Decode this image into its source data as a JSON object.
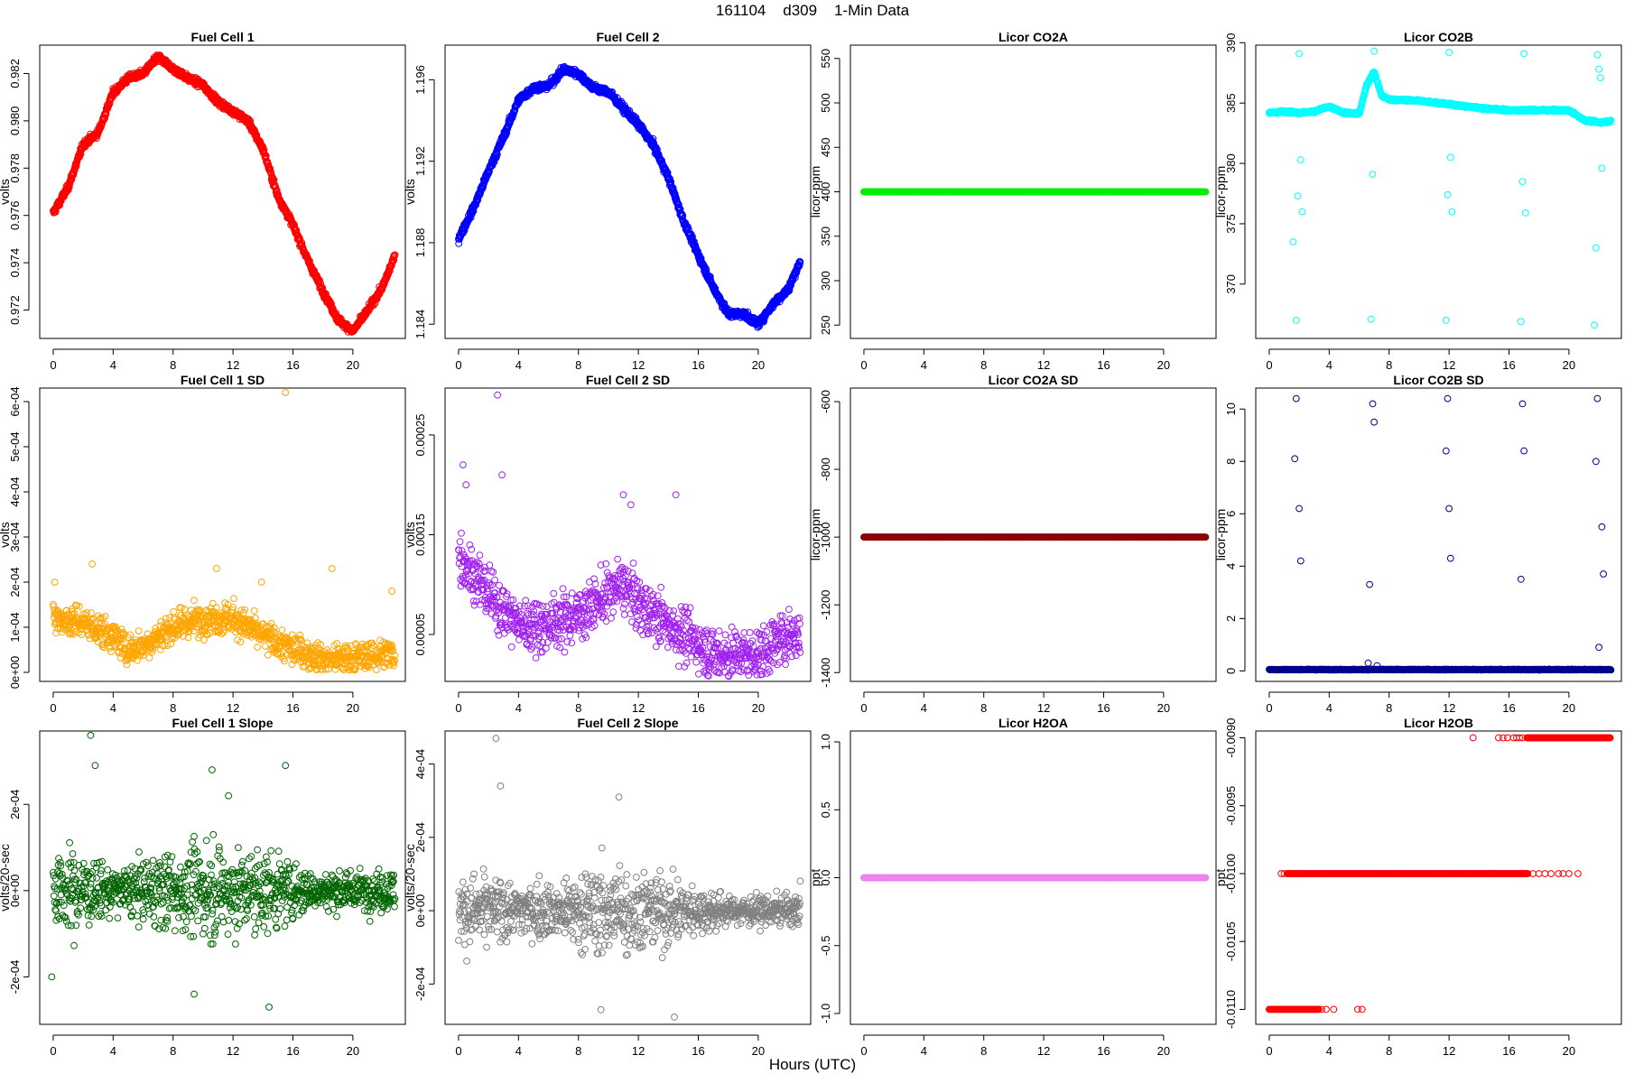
{
  "figure": {
    "title": "161104    d309    1-Min Data",
    "xlabel": "Hours (UTC)"
  },
  "chart_data": [
    {
      "id": "fc1",
      "type": "scatter",
      "title": "Fuel Cell 1",
      "ylabel": "volts",
      "color": "#ff0000",
      "xlim": [
        -0.9,
        23.5
      ],
      "ylim": [
        0.9708,
        0.9832
      ],
      "xticks": [
        0,
        4,
        8,
        12,
        16,
        20
      ],
      "xticklabels": [
        "0",
        "4",
        "8",
        "12",
        "16",
        "20"
      ],
      "yticks": [
        0.972,
        0.974,
        0.976,
        0.978,
        0.98,
        0.982
      ],
      "yticklabels": [
        "0.972",
        "0.974",
        "0.976",
        "0.978",
        "0.980",
        "0.982"
      ],
      "pattern": "curve",
      "noise": 0.00012,
      "x": [
        0,
        1,
        2,
        3,
        4,
        5,
        6,
        7,
        8,
        9,
        10,
        11,
        12,
        13,
        14,
        15,
        16,
        17,
        18,
        19,
        20,
        21,
        22,
        22.8
      ],
      "y": [
        0.9761,
        0.9772,
        0.979,
        0.9795,
        0.9812,
        0.9818,
        0.982,
        0.9827,
        0.9822,
        0.9818,
        0.9815,
        0.9808,
        0.9804,
        0.98,
        0.9788,
        0.9768,
        0.9756,
        0.9741,
        0.9728,
        0.9716,
        0.9711,
        0.972,
        0.973,
        0.9743
      ]
    },
    {
      "id": "fc2",
      "type": "scatter",
      "title": "Fuel Cell 2",
      "ylabel": "volts",
      "color": "#0000ff",
      "xlim": [
        -0.9,
        23.5
      ],
      "ylim": [
        1.1833,
        1.1977
      ],
      "xticks": [
        0,
        4,
        8,
        12,
        16,
        20
      ],
      "xticklabels": [
        "0",
        "4",
        "8",
        "12",
        "16",
        "20"
      ],
      "yticks": [
        1.184,
        1.188,
        1.192,
        1.196
      ],
      "yticklabels": [
        "1.184",
        "1.188",
        "1.192",
        "1.196"
      ],
      "pattern": "curve",
      "noise": 0.00015,
      "x": [
        0,
        1,
        2,
        3,
        4,
        5,
        6,
        7,
        8,
        9,
        10,
        11,
        12,
        13,
        14,
        15,
        16,
        17,
        18,
        19,
        20,
        21,
        22,
        22.8
      ],
      "y": [
        1.1882,
        1.1897,
        1.1915,
        1.1932,
        1.195,
        1.1956,
        1.1957,
        1.1965,
        1.1963,
        1.1956,
        1.1954,
        1.1946,
        1.1938,
        1.1928,
        1.1912,
        1.1891,
        1.1874,
        1.1858,
        1.1845,
        1.1845,
        1.184,
        1.185,
        1.1857,
        1.1871
      ]
    },
    {
      "id": "co2a",
      "type": "scatter",
      "title": "Licor CO2A",
      "ylabel": "licor-ppm",
      "color": "#00ee00",
      "xlim": [
        -0.9,
        23.5
      ],
      "ylim": [
        235,
        565
      ],
      "xticks": [
        0,
        4,
        8,
        12,
        16,
        20
      ],
      "xticklabels": [
        "0",
        "4",
        "8",
        "12",
        "16",
        "20"
      ],
      "yticks": [
        250,
        300,
        350,
        400,
        450,
        500,
        550
      ],
      "yticklabels": [
        "250",
        "300",
        "350",
        "400",
        "450",
        "500",
        "550"
      ],
      "pattern": "flat",
      "x": [
        0,
        22.8
      ],
      "y": [
        400,
        400
      ]
    },
    {
      "id": "co2b",
      "type": "scatter",
      "title": "Licor CO2B",
      "ylabel": "licor-ppm",
      "color": "#00ffff",
      "xlim": [
        -0.9,
        23.5
      ],
      "ylim": [
        365.5,
        389.8
      ],
      "xticks": [
        0,
        4,
        8,
        12,
        16,
        20
      ],
      "xticklabels": [
        "0",
        "4",
        "8",
        "12",
        "16",
        "20"
      ],
      "yticks": [
        370,
        375,
        380,
        385,
        390
      ],
      "yticklabels": [
        "370",
        "375",
        "380",
        "385",
        "390"
      ],
      "pattern": "curve",
      "noise": 0.08,
      "x": [
        0,
        1,
        2,
        3,
        4,
        5,
        6,
        6.5,
        7,
        7.5,
        8,
        10,
        12,
        14,
        16,
        18,
        20,
        21,
        22,
        22.8
      ],
      "y": [
        384.2,
        384.3,
        384.2,
        384.3,
        384.7,
        384.2,
        384.1,
        386.5,
        387.6,
        385.6,
        385.3,
        385.2,
        384.9,
        384.6,
        384.4,
        384.4,
        384.4,
        383.6,
        383.4,
        383.5
      ],
      "outliers": {
        "x": [
          1.6,
          1.8,
          2,
          2.1,
          2.2,
          1.9,
          6.8,
          7.0,
          6.9,
          11.8,
          12,
          12.1,
          12.2,
          11.9,
          16.8,
          17,
          16.9,
          17.1,
          21.7,
          21.9,
          22,
          22.1,
          22.2,
          21.8
        ],
        "y": [
          373.5,
          367,
          389.1,
          380.3,
          376,
          377.3,
          367.1,
          389.3,
          379.1,
          367,
          389.2,
          380.5,
          376,
          377.4,
          366.9,
          389.1,
          378.5,
          375.9,
          366.6,
          389,
          387.8,
          387.1,
          379.6,
          373
        ]
      }
    },
    {
      "id": "fc1sd",
      "type": "scatter",
      "title": "Fuel Cell 1 SD",
      "ylabel": "volts",
      "color": "#ffa500",
      "xlim": [
        -0.9,
        23.5
      ],
      "ylim": [
        -2e-05,
        0.00063
      ],
      "xticks": [
        0,
        4,
        8,
        12,
        16,
        20
      ],
      "xticklabels": [
        "0",
        "4",
        "8",
        "12",
        "16",
        "20"
      ],
      "yticks": [
        0,
        0.0001,
        0.0002,
        0.0003,
        0.0004,
        0.0005,
        0.0006
      ],
      "yticklabels": [
        "0e+00",
        "1e-04",
        "2e-04",
        "3e-04",
        "4e-04",
        "5e-04",
        "6e-04"
      ],
      "pattern": "noise",
      "noise": 3e-05,
      "floor": 5e-06,
      "x": [
        0,
        2,
        4,
        5,
        6,
        8,
        10,
        12,
        14,
        16,
        18,
        20,
        22,
        22.8
      ],
      "y": [
        0.00012,
        0.00011,
        8e-05,
        5e-05,
        6e-05,
        0.0001,
        0.00012,
        0.00012,
        8e-05,
        5e-05,
        3e-05,
        3e-05,
        4e-05,
        4e-05
      ],
      "outliers": {
        "x": [
          15.5,
          2.6,
          10.9,
          18.6,
          22.6,
          0.1,
          13.9
        ],
        "y": [
          0.00062,
          0.00024,
          0.00023,
          0.00023,
          0.00018,
          0.0002,
          0.0002
        ]
      }
    },
    {
      "id": "fc2sd",
      "type": "scatter",
      "title": "Fuel Cell 2 SD",
      "ylabel": "volts",
      "color": "#a020f0",
      "xlim": [
        -0.9,
        23.5
      ],
      "ylim": [
        3e-06,
        0.000297
      ],
      "xticks": [
        0,
        4,
        8,
        12,
        16,
        20
      ],
      "xticklabels": [
        "0",
        "4",
        "8",
        "12",
        "16",
        "20"
      ],
      "yticks": [
        5e-05,
        0.00015,
        0.00025
      ],
      "yticklabels": [
        "0.00005",
        "0.00015",
        "0.00025"
      ],
      "pattern": "noise",
      "noise": 2.2e-05,
      "floor": 8e-06,
      "x": [
        0,
        1,
        2,
        4,
        6,
        8,
        10,
        11,
        12,
        14,
        16,
        17,
        18,
        20,
        22,
        22.8
      ],
      "y": [
        0.00013,
        0.00011,
        9e-05,
        6e-05,
        6e-05,
        7e-05,
        9e-05,
        0.0001,
        8e-05,
        6e-05,
        4e-05,
        3e-05,
        3e-05,
        3e-05,
        5e-05,
        5e-05
      ],
      "outliers": {
        "x": [
          2.6,
          0.3,
          2.9,
          11,
          14.5,
          11.5,
          0.5
        ],
        "y": [
          0.00029,
          0.00022,
          0.00021,
          0.00019,
          0.00019,
          0.00018,
          0.0002
        ]
      }
    },
    {
      "id": "co2asd",
      "type": "scatter",
      "title": "Licor CO2A SD",
      "ylabel": "licor-ppm",
      "color": "#8b0000",
      "xlim": [
        -0.9,
        23.5
      ],
      "ylim": [
        -1426,
        -560
      ],
      "xticks": [
        0,
        4,
        8,
        12,
        16,
        20
      ],
      "xticklabels": [
        "0",
        "4",
        "8",
        "12",
        "16",
        "20"
      ],
      "yticks": [
        -1400,
        -1200,
        -1000,
        -800,
        -600
      ],
      "yticklabels": [
        "-1400",
        "-1200",
        "-1000",
        "-800",
        "-600"
      ],
      "pattern": "flat",
      "x": [
        0,
        22.8
      ],
      "y": [
        -1000,
        -1000
      ]
    },
    {
      "id": "co2bsd",
      "type": "scatter",
      "title": "Licor CO2B SD",
      "ylabel": "licor-ppm",
      "color": "#00008b",
      "xlim": [
        -0.9,
        23.5
      ],
      "ylim": [
        -0.4,
        10.8
      ],
      "xticks": [
        0,
        4,
        8,
        12,
        16,
        20
      ],
      "xticklabels": [
        "0",
        "4",
        "8",
        "12",
        "16",
        "20"
      ],
      "yticks": [
        0,
        2,
        4,
        6,
        8,
        10
      ],
      "yticklabels": [
        "0",
        "2",
        "4",
        "6",
        "8",
        "10"
      ],
      "pattern": "noise",
      "noise": 0.012,
      "floor": 0.0,
      "x": [
        0,
        22.8
      ],
      "y": [
        0.05,
        0.05
      ],
      "outliers": {
        "x": [
          1.8,
          1.7,
          2.0,
          2.1,
          6.7,
          6.9,
          7.0,
          11.9,
          11.8,
          12.0,
          12.1,
          16.9,
          17.0,
          16.8,
          21.9,
          21.8,
          22.2,
          22.3,
          22.0,
          6.6,
          7.2
        ],
        "y": [
          10.4,
          8.1,
          6.2,
          4.2,
          3.3,
          10.2,
          9.5,
          10.4,
          8.4,
          6.2,
          4.3,
          10.2,
          8.4,
          3.5,
          10.4,
          8.0,
          5.5,
          3.7,
          0.9,
          0.3,
          0.2
        ]
      }
    },
    {
      "id": "fc1slope",
      "type": "scatter",
      "title": "Fuel Cell 1 Slope",
      "ylabel": "volts/20-sec",
      "color": "#006400",
      "xlim": [
        -0.9,
        23.5
      ],
      "ylim": [
        -0.00031,
        0.00037
      ],
      "xticks": [
        0,
        4,
        8,
        12,
        16,
        20
      ],
      "xticklabels": [
        "0",
        "4",
        "8",
        "12",
        "16",
        "20"
      ],
      "yticks": [
        -0.0002,
        0,
        0.0002
      ],
      "yticklabels": [
        "-2e-04",
        "0e+00",
        "2e-04"
      ],
      "pattern": "noise",
      "noise": 7e-05,
      "x": [
        0,
        4,
        8,
        12,
        16,
        18,
        20,
        22.8
      ],
      "y": [
        0,
        0,
        0,
        0,
        0,
        0,
        0,
        0
      ],
      "noisex": [
        0,
        2,
        4,
        6,
        8,
        10,
        12,
        14,
        16,
        18,
        20,
        22.8
      ],
      "noiseamp": [
        1.1,
        1.0,
        0.6,
        0.8,
        1.1,
        1.3,
        1.2,
        1.1,
        0.8,
        0.5,
        0.5,
        0.6
      ],
      "outliers": {
        "x": [
          2.5,
          2.8,
          15.5,
          10.6,
          14.4,
          -0.1,
          9.4,
          11.7
        ],
        "y": [
          0.00036,
          0.00029,
          0.00029,
          0.00028,
          -0.00027,
          -0.0002,
          -0.00024,
          0.00022
        ]
      }
    },
    {
      "id": "fc2slope",
      "type": "scatter",
      "title": "Fuel Cell 2 Slope",
      "ylabel": "volts/20-sec",
      "color": "#808080",
      "xlim": [
        -0.9,
        23.5
      ],
      "ylim": [
        -0.00031,
        0.00049
      ],
      "xticks": [
        0,
        4,
        8,
        12,
        16,
        20
      ],
      "xticklabels": [
        "0",
        "4",
        "8",
        "12",
        "16",
        "20"
      ],
      "yticks": [
        -0.0002,
        0,
        0.0002,
        0.0004
      ],
      "yticklabels": [
        "-2e-04",
        "0e+00",
        "2e-04",
        "4e-04"
      ],
      "pattern": "noise",
      "noise": 8e-05,
      "x": [
        0,
        4,
        8,
        12,
        16,
        18,
        20,
        22.8
      ],
      "y": [
        0,
        0,
        0,
        0,
        0,
        0,
        0,
        0
      ],
      "noisex": [
        0,
        2,
        4,
        6,
        8,
        10,
        12,
        14,
        16,
        18,
        20,
        22.8
      ],
      "noiseamp": [
        1.1,
        1.0,
        0.7,
        0.8,
        1.1,
        1.3,
        1.2,
        1.0,
        0.7,
        0.4,
        0.4,
        0.5
      ],
      "outliers": {
        "x": [
          2.5,
          2.8,
          10.7,
          14.4,
          9.5
        ],
        "y": [
          0.00047,
          0.00034,
          0.00031,
          -0.00029,
          -0.00027
        ]
      }
    },
    {
      "id": "h2oa",
      "type": "scatter",
      "title": "Licor H2OA",
      "ylabel": "ppt",
      "color": "#ee82ee",
      "xlim": [
        -0.9,
        23.5
      ],
      "ylim": [
        -1.08,
        1.08
      ],
      "xticks": [
        0,
        4,
        8,
        12,
        16,
        20
      ],
      "xticklabels": [
        "0",
        "4",
        "8",
        "12",
        "16",
        "20"
      ],
      "yticks": [
        -1,
        -0.5,
        0,
        0.5,
        1
      ],
      "yticklabels": [
        "-1.0",
        "-0.5",
        "0.0",
        "0.5",
        "1.0"
      ],
      "pattern": "flat",
      "x": [
        0,
        22.8
      ],
      "y": [
        0,
        0
      ]
    },
    {
      "id": "h2ob",
      "type": "scatter",
      "title": "Licor H2OB",
      "ylabel": "ppt",
      "color": "#ff0000",
      "xlim": [
        -0.9,
        23.5
      ],
      "ylim": [
        -0.01111,
        -0.00895
      ],
      "xticks": [
        0,
        4,
        8,
        12,
        16,
        20
      ],
      "xticklabels": [
        "0",
        "4",
        "8",
        "12",
        "16",
        "20"
      ],
      "yticks": [
        -0.011,
        -0.0105,
        -0.01,
        -0.0095,
        -0.009
      ],
      "yticklabels": [
        "-0.0110",
        "-0.0105",
        "-0.0100",
        "-0.0095",
        "-0.0090"
      ],
      "pattern": "levels",
      "levels": [
        {
          "y": -0.011,
          "x0": 0,
          "x1": 3.3,
          "extra": [
            3.5,
            3.8,
            4.3,
            5.9,
            6.2
          ]
        },
        {
          "y": -0.01,
          "x0": 1.2,
          "x1": 17.3,
          "extra": [
            0.8,
            1.0,
            17.6,
            18.0,
            18.4,
            18.8,
            19.3,
            19.6,
            20.0,
            20.6
          ]
        },
        {
          "y": -0.009,
          "x0": 17.2,
          "x1": 22.8,
          "extra": [
            13.6,
            15.3,
            15.6,
            15.9,
            16.3,
            16.5,
            16.7,
            16.9
          ]
        }
      ]
    }
  ]
}
